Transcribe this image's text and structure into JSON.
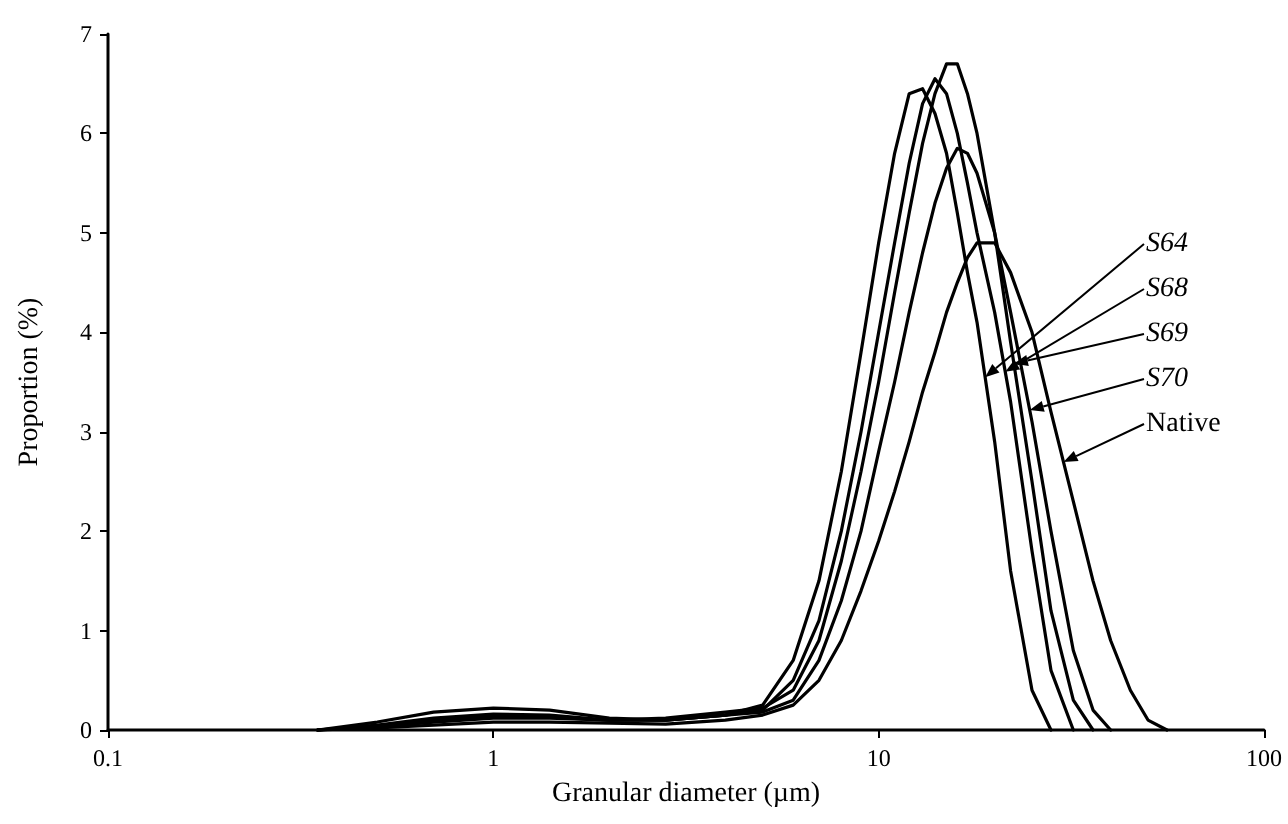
{
  "chart_data": {
    "type": "line",
    "xlabel": "Granular diameter (µm)",
    "ylabel": "Proportion (%)",
    "log": "x",
    "grid": false,
    "legend": "right",
    "marker": "none",
    "line_style": "solid",
    "xlim": [
      0.1,
      100
    ],
    "xticks": [
      0.1,
      1,
      10,
      100
    ],
    "ylim": [
      0,
      7
    ],
    "yticks": [
      0,
      1,
      2,
      3,
      4,
      5,
      6,
      7
    ],
    "series": [
      {
        "name": "S64",
        "color": "#000000",
        "x": [
          0.35,
          0.5,
          0.7,
          1,
          1.4,
          2,
          2.8,
          4,
          5,
          6,
          7,
          8,
          9,
          10,
          11,
          12,
          13,
          14,
          15,
          16,
          17,
          18,
          20,
          22,
          25,
          28
        ],
        "values": [
          0,
          0.08,
          0.18,
          0.22,
          0.2,
          0.12,
          0.1,
          0.15,
          0.25,
          0.7,
          1.5,
          2.6,
          3.8,
          4.9,
          5.8,
          6.4,
          6.45,
          6.2,
          5.8,
          5.2,
          4.6,
          4.1,
          2.9,
          1.6,
          0.4,
          0
        ]
      },
      {
        "name": "S68",
        "color": "#000000",
        "x": [
          0.35,
          0.5,
          0.7,
          1,
          1.4,
          2,
          2.8,
          4,
          5,
          6,
          7,
          8,
          9,
          10,
          11,
          12,
          13,
          14,
          15,
          16,
          17,
          18,
          20,
          22,
          25,
          28,
          32
        ],
        "values": [
          0,
          0.05,
          0.12,
          0.16,
          0.15,
          0.1,
          0.1,
          0.15,
          0.2,
          0.5,
          1.1,
          2,
          3,
          4,
          4.9,
          5.7,
          6.3,
          6.55,
          6.4,
          6,
          5.5,
          5,
          4.2,
          3.3,
          1.8,
          0.6,
          0
        ]
      },
      {
        "name": "S69",
        "color": "#000000",
        "x": [
          0.35,
          0.5,
          0.7,
          1,
          1.4,
          2,
          2.8,
          4,
          5,
          6,
          7,
          8,
          9,
          10,
          11,
          12,
          13,
          14,
          15,
          16,
          17,
          18,
          20,
          22,
          25,
          28,
          32,
          36
        ],
        "values": [
          0,
          0.04,
          0.1,
          0.14,
          0.13,
          0.1,
          0.12,
          0.18,
          0.22,
          0.4,
          0.9,
          1.7,
          2.6,
          3.5,
          4.4,
          5.2,
          5.9,
          6.4,
          6.7,
          6.7,
          6.4,
          6,
          5,
          3.9,
          2.5,
          1.2,
          0.3,
          0
        ]
      },
      {
        "name": "S70",
        "color": "#000000",
        "x": [
          0.35,
          0.5,
          0.7,
          1,
          1.4,
          2,
          2.8,
          4,
          5,
          6,
          7,
          8,
          9,
          10,
          11,
          12,
          13,
          14,
          15,
          16,
          17,
          18,
          20,
          22,
          25,
          28,
          32,
          36,
          40
        ],
        "values": [
          0,
          0.03,
          0.08,
          0.12,
          0.12,
          0.1,
          0.1,
          0.15,
          0.18,
          0.3,
          0.7,
          1.3,
          2,
          2.8,
          3.5,
          4.2,
          4.8,
          5.3,
          5.65,
          5.85,
          5.8,
          5.6,
          5,
          4.2,
          3.1,
          2,
          0.8,
          0.2,
          0
        ]
      },
      {
        "name": "Native",
        "color": "#000000",
        "x": [
          0.35,
          0.5,
          0.7,
          1,
          1.4,
          2,
          2.8,
          4,
          5,
          6,
          7,
          8,
          9,
          10,
          11,
          12,
          13,
          14,
          15,
          16,
          17,
          18,
          20,
          22,
          25,
          28,
          32,
          36,
          40,
          45,
          50,
          56
        ],
        "values": [
          0,
          0.02,
          0.05,
          0.08,
          0.08,
          0.07,
          0.06,
          0.1,
          0.15,
          0.25,
          0.5,
          0.9,
          1.4,
          1.9,
          2.4,
          2.9,
          3.4,
          3.8,
          4.2,
          4.5,
          4.75,
          4.9,
          4.9,
          4.6,
          4,
          3.2,
          2.3,
          1.5,
          0.9,
          0.4,
          0.1,
          0
        ]
      }
    ]
  }
}
